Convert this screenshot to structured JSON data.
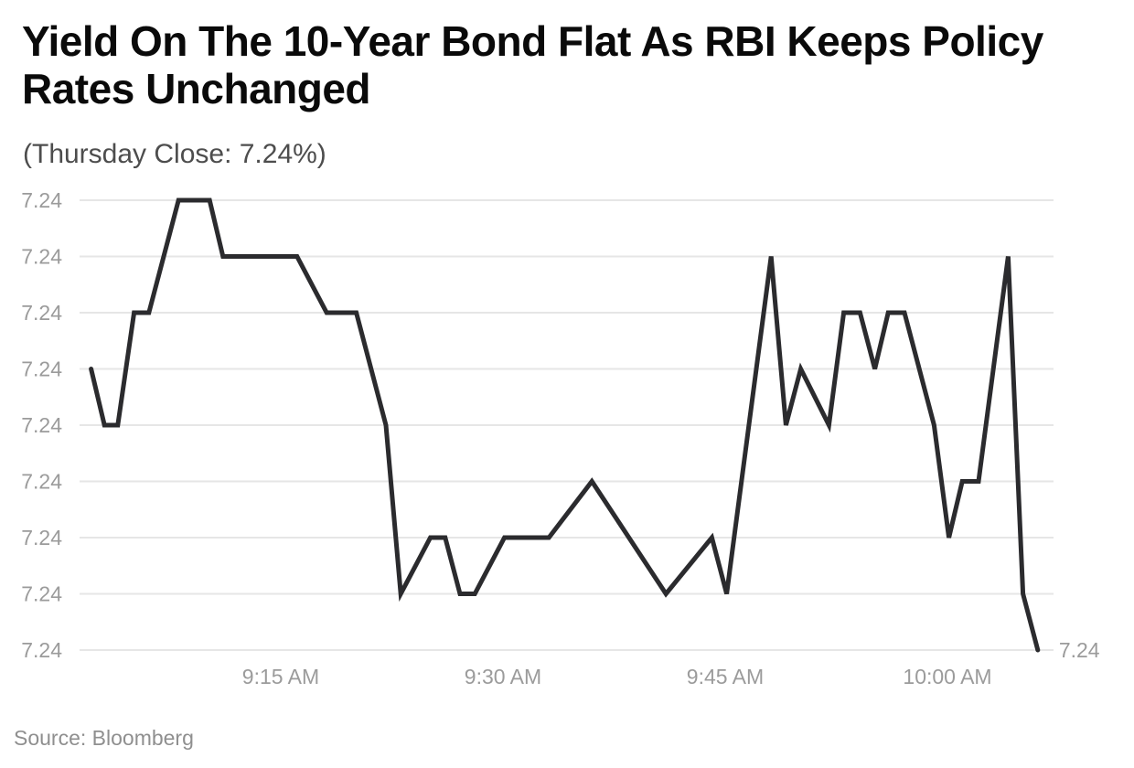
{
  "header": {
    "title": "Yield On The 10-Year Bond Flat As RBI Keeps Policy Rates Unchanged",
    "title_lines": [
      "Yield On The 10-Year Bond Flat As RBI Keeps Policy",
      "Rates Unchanged"
    ],
    "subtitle": "(Thursday Close: 7.24%)"
  },
  "footer": {
    "source": "Source: Bloomberg"
  },
  "chart_data": {
    "type": "line",
    "title": "Yield On The 10-Year Bond Flat As RBI Keeps Policy Rates Unchanged",
    "subtitle": "(Thursday Close: 7.24%)",
    "source": "Source: Bloomberg",
    "grid": true,
    "legend": "none",
    "y_axis": {
      "tick_labels": [
        "7.24",
        "7.24",
        "7.24",
        "7.24",
        "7.24",
        "7.24",
        "7.24",
        "7.24",
        "7.24"
      ],
      "note": "All nine horizontal gridlines are labeled 7.24; underlying values differ only beyond the displayed 2-decimal rounding. Series y-values below are given as gridline levels 0 (bottom gridline) through 8 (top gridline)."
    },
    "x_axis": {
      "tick_labels": [
        "9:15 AM",
        "9:30 AM",
        "9:45 AM",
        "10:00 AM"
      ],
      "tick_minutes": [
        15,
        30,
        45,
        60
      ],
      "minutes_origin": "9:00 AM",
      "visible_range_minutes": [
        1.4,
        67.2
      ]
    },
    "end_label": "7.24",
    "series": [
      {
        "name": "10-year-bond-yield",
        "points_format": "[minutes after 9:00 AM, gridline level 0..8]",
        "points": [
          [
            2.2,
            5
          ],
          [
            3.1,
            4
          ],
          [
            4.0,
            4
          ],
          [
            5.1,
            6
          ],
          [
            6.1,
            6
          ],
          [
            8.1,
            8
          ],
          [
            10.2,
            8
          ],
          [
            11.1,
            7
          ],
          [
            16.1,
            7
          ],
          [
            18.1,
            6
          ],
          [
            20.1,
            6
          ],
          [
            22.1,
            4
          ],
          [
            23.1,
            1
          ],
          [
            25.1,
            2
          ],
          [
            26.1,
            2
          ],
          [
            27.1,
            1
          ],
          [
            28.1,
            1
          ],
          [
            30.1,
            2
          ],
          [
            33.1,
            2
          ],
          [
            36.0,
            3
          ],
          [
            41.0,
            1
          ],
          [
            44.1,
            2
          ],
          [
            45.1,
            1
          ],
          [
            48.1,
            7
          ],
          [
            49.1,
            4
          ],
          [
            50.1,
            5
          ],
          [
            52.0,
            4
          ],
          [
            53.0,
            6
          ],
          [
            54.1,
            6
          ],
          [
            55.1,
            5
          ],
          [
            56.0,
            6
          ],
          [
            57.1,
            6
          ],
          [
            59.1,
            4
          ],
          [
            60.1,
            2
          ],
          [
            61.0,
            3
          ],
          [
            62.1,
            3
          ],
          [
            64.1,
            7
          ],
          [
            65.1,
            1
          ],
          [
            66.1,
            0
          ]
        ]
      }
    ],
    "colors": {
      "line": "#2b2b2e",
      "grid": "#e6e6e6",
      "axis_text": "#9b9b9b",
      "title": "#0a0a0a",
      "subtitle": "#4d4d4d",
      "source": "#8f8f8f"
    }
  }
}
